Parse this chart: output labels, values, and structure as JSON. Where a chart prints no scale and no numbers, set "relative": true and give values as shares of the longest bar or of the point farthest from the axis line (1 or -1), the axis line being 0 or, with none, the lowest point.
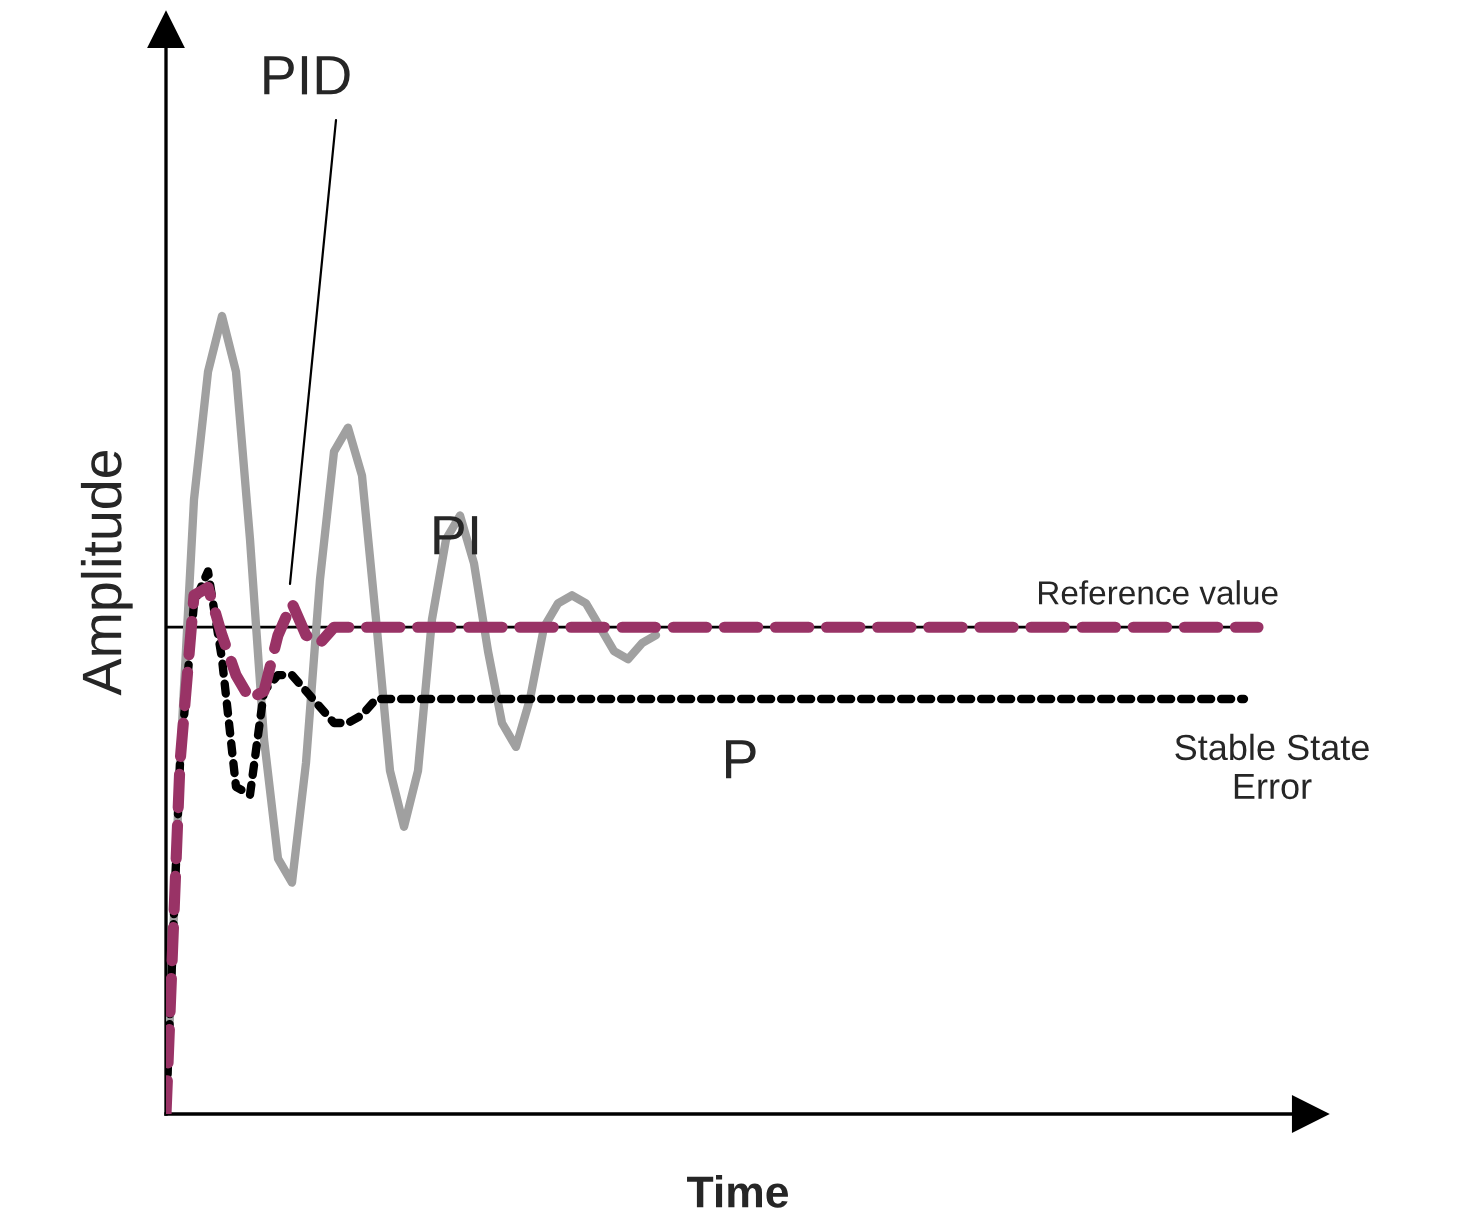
{
  "chart_data": {
    "type": "line",
    "relative": true,
    "xlabel": "Time",
    "ylabel": "Amplitude",
    "legend": false,
    "tick_labels": false,
    "categories": [
      null,
      null,
      null,
      null,
      null,
      null,
      null,
      null,
      null,
      null,
      null,
      null,
      null,
      null,
      null,
      null,
      null,
      null,
      null,
      null,
      null,
      null,
      null,
      null,
      null,
      null,
      null,
      null,
      null,
      null,
      null,
      null,
      null,
      null,
      null,
      null,
      null,
      null,
      null,
      null,
      null,
      null,
      null,
      null,
      null,
      null,
      null,
      null,
      null,
      null,
      null,
      null,
      null,
      null,
      null,
      null,
      null,
      null,
      null,
      null,
      null,
      null,
      null,
      null,
      null,
      null,
      null,
      null,
      null,
      null,
      null,
      null,
      null,
      null,
      null,
      null,
      null,
      null,
      null
    ],
    "series": [
      {
        "name": "PI",
        "color": "#a0a0a0",
        "line_style": "solid",
        "values": [
          0,
          0.44,
          0.77,
          0.93,
          1.0,
          0.93,
          0.72,
          0.47,
          0.32,
          0.29,
          0.44,
          0.67,
          0.83,
          0.86,
          0.8,
          0.62,
          0.43,
          0.36,
          0.43,
          0.62,
          0.72,
          0.75,
          0.69,
          0.58,
          0.49,
          0.46,
          0.52,
          0.61,
          0.64,
          0.65,
          0.64,
          0.61,
          0.58,
          0.57,
          0.59,
          0.6,
          null,
          null,
          null,
          null,
          null,
          null,
          null,
          null,
          null,
          null,
          null,
          null,
          null,
          null,
          null,
          null,
          null,
          null,
          null,
          null,
          null,
          null,
          null,
          null,
          null,
          null,
          null,
          null,
          null,
          null,
          null,
          null,
          null,
          null,
          null,
          null,
          null,
          null,
          null,
          null,
          null,
          null,
          null
        ]
      },
      {
        "name": "P",
        "color": "#000000",
        "line_style": "dotted",
        "values": [
          0,
          0.44,
          0.64,
          0.68,
          0.57,
          0.41,
          0.4,
          0.53,
          0.55,
          0.55,
          0.53,
          0.51,
          0.49,
          0.49,
          0.5,
          0.52,
          0.52,
          0.52,
          0.52,
          0.52,
          0.52,
          0.52,
          0.52,
          0.52,
          0.52,
          0.52,
          0.52,
          0.52,
          0.52,
          0.52,
          0.52,
          0.52,
          0.52,
          0.52,
          0.52,
          0.52,
          0.52,
          0.52,
          0.52,
          0.52,
          0.52,
          0.52,
          0.52,
          0.52,
          0.52,
          0.52,
          0.52,
          0.52,
          0.52,
          0.52,
          0.52,
          0.52,
          0.52,
          0.52,
          0.52,
          0.52,
          0.52,
          0.52,
          0.52,
          0.52,
          0.52,
          0.52,
          0.52,
          0.52,
          0.52,
          0.52,
          0.52,
          0.52,
          0.52,
          0.52,
          0.52,
          0.52,
          0.52,
          0.52,
          0.52,
          0.52,
          0.52,
          0.52,
          null
        ]
      },
      {
        "name": "PID",
        "color": "#993366",
        "line_style": "dashed",
        "values": [
          0,
          0.44,
          0.65,
          0.66,
          0.6,
          0.55,
          0.52,
          0.53,
          0.6,
          0.64,
          0.6,
          0.59,
          0.61,
          0.61,
          0.61,
          0.61,
          0.61,
          0.61,
          0.61,
          0.61,
          0.61,
          0.61,
          0.61,
          0.61,
          0.61,
          0.61,
          0.61,
          0.61,
          0.61,
          0.61,
          0.61,
          0.61,
          0.61,
          0.61,
          0.61,
          0.61,
          0.61,
          0.61,
          0.61,
          0.61,
          0.61,
          0.61,
          0.61,
          0.61,
          0.61,
          0.61,
          0.61,
          0.61,
          0.61,
          0.61,
          0.61,
          0.61,
          0.61,
          0.61,
          0.61,
          0.61,
          0.61,
          0.61,
          0.61,
          0.61,
          0.61,
          0.61,
          0.61,
          0.61,
          0.61,
          0.61,
          0.61,
          0.61,
          0.61,
          0.61,
          0.61,
          0.61,
          0.61,
          0.61,
          0.61,
          0.61,
          0.61,
          0.61,
          0.61
        ]
      }
    ],
    "ref_lines": [
      {
        "axis": "y",
        "value": 0.61,
        "label": "Reference value",
        "color": "#000000",
        "line_style": "solid"
      }
    ],
    "annotations": [
      "Stable State\nError"
    ]
  }
}
